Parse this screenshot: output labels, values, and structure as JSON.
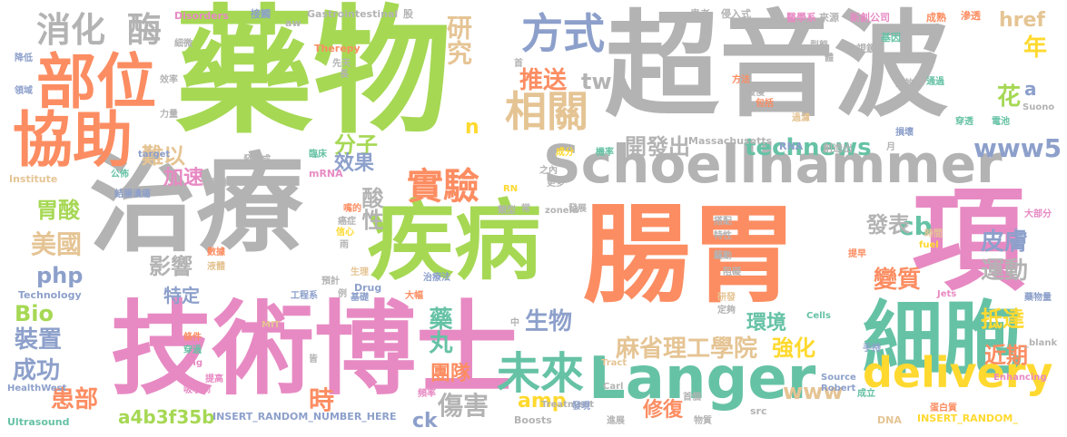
{
  "words": [
    {
      "text": "藥物",
      "color": "#a6d854"
    },
    {
      "text": "超音波",
      "color": "#b3b3b3"
    },
    {
      "text": "治療",
      "color": "#b3b3b3"
    },
    {
      "text": "腸胃",
      "color": "#fc8d62"
    },
    {
      "text": "技術博士",
      "color": "#e78ac3"
    },
    {
      "text": "疾病",
      "color": "#a6d854"
    },
    {
      "text": "Schoellhammer",
      "color": "#b3b3b3"
    },
    {
      "text": "項",
      "color": "#e78ac3"
    },
    {
      "text": "細胞",
      "color": "#66c2a5"
    },
    {
      "text": "Langer",
      "color": "#66c2a5"
    },
    {
      "text": "部位",
      "color": "#fc8d62"
    },
    {
      "text": "協助",
      "color": "#fc8d62"
    },
    {
      "text": "delivery",
      "color": "#ffd92f"
    },
    {
      "text": "消化",
      "color": "#b3b3b3"
    },
    {
      "text": "酶",
      "color": "#b3b3b3"
    },
    {
      "text": "方式",
      "color": "#8da0cb"
    },
    {
      "text": "相關",
      "color": "#e5c494"
    },
    {
      "text": "實驗",
      "color": "#fc8d62"
    },
    {
      "text": "未來",
      "color": "#66c2a5"
    },
    {
      "text": "研究",
      "color": "#e5c494"
    },
    {
      "text": "推送",
      "color": "#fc8d62"
    },
    {
      "text": "tw",
      "color": "#b3b3b3"
    },
    {
      "text": "technews",
      "color": "#66c2a5"
    },
    {
      "text": "www5",
      "color": "#8da0cb"
    },
    {
      "text": "開發出",
      "color": "#b3b3b3"
    },
    {
      "text": "分子",
      "color": "#a6d854"
    },
    {
      "text": "麻省理工學院",
      "color": "#e5c494"
    },
    {
      "text": "美國",
      "color": "#e5c494"
    },
    {
      "text": "胃酸",
      "color": "#a6d854"
    },
    {
      "text": "php",
      "color": "#8da0cb"
    },
    {
      "text": "Bio",
      "color": "#a6d854"
    },
    {
      "text": "裝置",
      "color": "#8da0cb"
    },
    {
      "text": "成功",
      "color": "#8da0cb"
    },
    {
      "text": "患部",
      "color": "#fc8d62"
    },
    {
      "text": "a4b3f35b",
      "color": "#a6d854"
    },
    {
      "text": "時",
      "color": "#fc8d62"
    },
    {
      "text": "amp",
      "color": "#ffd92f"
    },
    {
      "text": "傷害",
      "color": "#b3b3b3"
    },
    {
      "text": "www",
      "color": "#e5c494"
    },
    {
      "text": "團隊",
      "color": "#fc8d62"
    },
    {
      "text": "藥丸",
      "color": "#66c2a5"
    },
    {
      "text": "生物",
      "color": "#8da0cb"
    },
    {
      "text": "修復",
      "color": "#fc8d62"
    },
    {
      "text": "強化",
      "color": "#ffd92f"
    },
    {
      "text": "環境",
      "color": "#66c2a5"
    },
    {
      "text": "抵達",
      "color": "#ffd92f"
    },
    {
      "text": "近期",
      "color": "#fc8d62"
    },
    {
      "text": "cb",
      "color": "#66c2a5"
    },
    {
      "text": "皮膚",
      "color": "#8da0cb"
    },
    {
      "text": "運動",
      "color": "#b3b3b3"
    },
    {
      "text": "發表",
      "color": "#b3b3b3"
    },
    {
      "text": "變質",
      "color": "#fc8d62"
    },
    {
      "text": "年",
      "color": "#ffd92f"
    },
    {
      "text": "花",
      "color": "#a6d854"
    },
    {
      "text": "href",
      "color": "#e5c494"
    },
    {
      "text": "a",
      "color": "#8da0cb"
    },
    {
      "text": "效果",
      "color": "#8da0cb"
    },
    {
      "text": "酸性",
      "color": "#b3b3b3"
    },
    {
      "text": "加速",
      "color": "#e78ac3"
    },
    {
      "text": "難以",
      "color": "#e5c494"
    },
    {
      "text": "影響",
      "color": "#b3b3b3"
    },
    {
      "text": "特定",
      "color": "#8da0cb"
    },
    {
      "text": "ck",
      "color": "#8da0cb"
    },
    {
      "text": "n",
      "color": "#ffd92f"
    },
    {
      "text": "Disorders",
      "color": "#e78ac3"
    },
    {
      "text": "接觸",
      "color": "#8da0cb"
    },
    {
      "text": "Gastrointestinal",
      "color": "#b3b3b3"
    },
    {
      "text": "股",
      "color": "#b3b3b3"
    },
    {
      "text": "患者",
      "color": "#b3b3b3"
    },
    {
      "text": "侵入式",
      "color": "#b3b3b3"
    },
    {
      "text": "醫學系",
      "color": "#e78ac3"
    },
    {
      "text": "來源",
      "color": "#b3b3b3"
    },
    {
      "text": "新創公司",
      "color": "#e78ac3"
    },
    {
      "text": "成熟",
      "color": "#fc8d62"
    },
    {
      "text": "滲透",
      "color": "#fc8d62"
    },
    {
      "text": "內視鏡",
      "color": "#b3b3b3"
    },
    {
      "text": "基因",
      "color": "#66c2a5"
    },
    {
      "text": "aw",
      "color": "#b3b3b3"
    },
    {
      "text": "Therepy",
      "color": "#fc8d62"
    },
    {
      "text": "Suono",
      "color": "#b3b3b3"
    },
    {
      "text": "Massachusetts",
      "color": "#b3b3b3"
    },
    {
      "text": "RNA",
      "color": "#8da0cb"
    },
    {
      "text": "創造出",
      "color": "#b3b3b3"
    },
    {
      "text": "mRNA",
      "color": "#e78ac3"
    },
    {
      "text": "Institute",
      "color": "#e5c494"
    },
    {
      "text": "Technology",
      "color": "#8da0cb"
    },
    {
      "text": "HealthWest",
      "color": "#8da0cb"
    },
    {
      "text": "Ultrasound",
      "color": "#66c2a5"
    },
    {
      "text": "INSERT_RANDOM_NUMBER_HERE",
      "color": "#8da0cb"
    },
    {
      "text": "INSERT_RANDOM_",
      "color": "#ffd92f"
    },
    {
      "text": "Boosts",
      "color": "#b3b3b3"
    },
    {
      "text": "Treatment",
      "color": "#b3b3b3"
    },
    {
      "text": "Tract",
      "color": "#e5c494"
    },
    {
      "text": "Carl",
      "color": "#b3b3b3"
    },
    {
      "text": "src",
      "color": "#b3b3b3"
    },
    {
      "text": "DNA",
      "color": "#e5c494"
    },
    {
      "text": "Source",
      "color": "#8da0cb"
    },
    {
      "text": "Robert",
      "color": "#8da0cb"
    },
    {
      "text": "Enhancing",
      "color": "#e78ac3"
    },
    {
      "text": "Jets",
      "color": "#e78ac3"
    },
    {
      "text": "Cells",
      "color": "#66c2a5"
    },
    {
      "text": "fuel",
      "color": "#ffd92f"
    },
    {
      "text": "_blank",
      "color": "#b3b3b3"
    },
    {
      "text": "MIT",
      "color": "#e5c494"
    },
    {
      "text": "zoneid",
      "color": "#b3b3b3"
    },
    {
      "text": "target",
      "color": "#8da0cb"
    },
    {
      "text": "Drug",
      "color": "#8da0cb"
    },
    {
      "text": "之內",
      "color": "#b3b3b3"
    },
    {
      "text": "更多",
      "color": "#b3b3b3"
    },
    {
      "text": "類型",
      "color": "#b3b3b3"
    },
    {
      "text": "發展",
      "color": "#b3b3b3"
    },
    {
      "text": "治療法",
      "color": "#8da0cb"
    },
    {
      "text": "大部分",
      "color": "#e78ac3"
    },
    {
      "text": "時間",
      "color": "#e5c494"
    },
    {
      "text": "蛋白質",
      "color": "#fc8d62"
    },
    {
      "text": "藥物量",
      "color": "#8da0cb"
    },
    {
      "text": "成立",
      "color": "#66c2a5"
    },
    {
      "text": "手持",
      "color": "#8da0cb"
    },
    {
      "text": "研發",
      "color": "#e5c494"
    },
    {
      "text": "定夠",
      "color": "#b3b3b3"
    },
    {
      "text": "首個",
      "color": "#b3b3b3"
    },
    {
      "text": "進展",
      "color": "#b3b3b3"
    },
    {
      "text": "物質",
      "color": "#b3b3b3"
    },
    {
      "text": "發現",
      "color": "#8da0cb"
    },
    {
      "text": "頻率",
      "color": "#e78ac3"
    },
    {
      "text": "大幅",
      "color": "#fc8d62"
    },
    {
      "text": "基礎",
      "color": "#8da0cb"
    },
    {
      "text": "工程系",
      "color": "#8da0cb"
    },
    {
      "text": "生理",
      "color": "#e5c494"
    },
    {
      "text": "預計",
      "color": "#b3b3b3"
    },
    {
      "text": "信心",
      "color": "#ffd92f"
    },
    {
      "text": "癌症",
      "color": "#b3b3b3"
    },
    {
      "text": "嘴的",
      "color": "#fc8d62"
    },
    {
      "text": "夥伴",
      "color": "#b3b3b3"
    },
    {
      "text": "臨床",
      "color": "#66c2a5"
    },
    {
      "text": "力量",
      "color": "#b3b3b3"
    },
    {
      "text": "效率",
      "color": "#b3b3b3"
    },
    {
      "text": "公佈",
      "color": "#66c2a5"
    },
    {
      "text": "數據",
      "color": "#fc8d62"
    },
    {
      "text": "液體",
      "color": "#e5c494"
    },
    {
      "text": "結腸潰瘍",
      "color": "#8da0cb"
    },
    {
      "text": "條件",
      "color": "#fc8d62"
    },
    {
      "text": "穿過",
      "color": "#66c2a5"
    },
    {
      "text": "提高",
      "color": "#e78ac3"
    },
    {
      "text": "吸收到",
      "color": "#e78ac3"
    },
    {
      "text": "img",
      "color": "#e78ac3"
    },
    {
      "text": "降低",
      "color": "#8da0cb"
    },
    {
      "text": "領域",
      "color": "#8da0cb"
    },
    {
      "text": "細微",
      "color": "#b3b3b3"
    },
    {
      "text": "先天",
      "color": "#b3b3b3"
    },
    {
      "text": "型態",
      "color": "#b3b3b3"
    },
    {
      "text": "療效",
      "color": "#b3b3b3"
    },
    {
      "text": "通過",
      "color": "#66c2a5"
    },
    {
      "text": "緩慢",
      "color": "#b3b3b3"
    },
    {
      "text": "包括",
      "color": "#fc8d62"
    },
    {
      "text": "電池",
      "color": "#66c2a5"
    },
    {
      "text": "穿透",
      "color": "#66c2a5"
    },
    {
      "text": "損壞",
      "color": "#8da0cb"
    },
    {
      "text": "過濾",
      "color": "#e5c494"
    },
    {
      "text": "成分",
      "color": "#ffd92f"
    },
    {
      "text": "機率",
      "color": "#66c2a5"
    },
    {
      "text": "搭配",
      "color": "#b3b3b3"
    },
    {
      "text": "特性",
      "color": "#b3b3b3"
    },
    {
      "text": "驅動",
      "color": "#b3b3b3"
    },
    {
      "text": "阻礙",
      "color": "#b3b3b3"
    },
    {
      "text": "提早",
      "color": "#fc8d62"
    },
    {
      "text": "方法",
      "color": "#fc8d62"
    },
    {
      "text": "長",
      "color": "#b3b3b3"
    },
    {
      "text": "首",
      "color": "#b3b3b3"
    },
    {
      "text": "皆",
      "color": "#b3b3b3"
    },
    {
      "text": "月",
      "color": "#b3b3b3"
    },
    {
      "text": "例",
      "color": "#b3b3b3"
    },
    {
      "text": "雨",
      "color": "#b3b3b3"
    },
    {
      "text": "中",
      "color": "#b3b3b3"
    },
    {
      "text": "常",
      "color": "#b3b3b3"
    },
    {
      "text": "體",
      "color": "#b3b3b3"
    },
    {
      "text": "RN",
      "color": "#ffd92f"
    },
    {
      "text": "發展成",
      "color": "#b3b3b3"
    }
  ]
}
